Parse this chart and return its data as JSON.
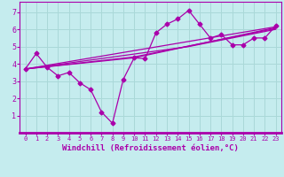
{
  "xlabel": "Windchill (Refroidissement éolien,°C)",
  "background_color": "#c5ecee",
  "grid_color": "#aad8d8",
  "line_color": "#aa00aa",
  "spine_color": "#aa00aa",
  "xlim": [
    -0.5,
    23.5
  ],
  "ylim": [
    0,
    7.6
  ],
  "xticks": [
    0,
    1,
    2,
    3,
    4,
    5,
    6,
    7,
    8,
    9,
    10,
    11,
    12,
    13,
    14,
    15,
    16,
    17,
    18,
    19,
    20,
    21,
    22,
    23
  ],
  "yticks": [
    1,
    2,
    3,
    4,
    5,
    6,
    7
  ],
  "main_x": [
    0,
    1,
    2,
    3,
    4,
    5,
    6,
    7,
    8,
    9,
    10,
    11,
    12,
    13,
    14,
    15,
    16,
    17,
    18,
    19,
    20,
    21,
    22,
    23
  ],
  "main_y": [
    3.7,
    4.6,
    3.8,
    3.3,
    3.5,
    2.9,
    2.5,
    1.2,
    0.55,
    3.1,
    4.35,
    4.3,
    5.8,
    6.3,
    6.6,
    7.1,
    6.3,
    5.5,
    5.7,
    5.1,
    5.1,
    5.5,
    5.5,
    6.2
  ],
  "trend1_x": [
    0,
    23
  ],
  "trend1_y": [
    3.7,
    6.15
  ],
  "trend2_x": [
    0,
    10,
    23
  ],
  "trend2_y": [
    3.7,
    4.4,
    6.05
  ],
  "trend3_x": [
    0,
    10,
    23
  ],
  "trend3_y": [
    3.7,
    4.35,
    6.1
  ],
  "trend4_x": [
    0,
    15,
    23
  ],
  "trend4_y": [
    3.7,
    5.0,
    6.0
  ]
}
